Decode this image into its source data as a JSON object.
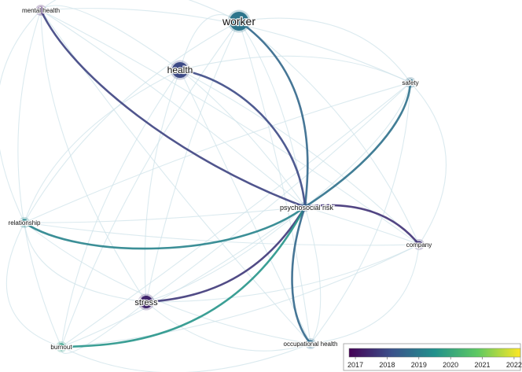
{
  "network": {
    "nodes": [
      {
        "id": "worker",
        "label": "worker",
        "year": 2018.9,
        "weight": 5
      },
      {
        "id": "mental_health",
        "label": "mental health",
        "year": 2017.2,
        "weight": 1
      },
      {
        "id": "health",
        "label": "health",
        "year": 2018.0,
        "weight": 4
      },
      {
        "id": "safety",
        "label": "safety",
        "year": 2018.8,
        "weight": 1
      },
      {
        "id": "psychosocial_risk",
        "label": "psychosocial risk",
        "year": 2018.4,
        "weight": 6
      },
      {
        "id": "relationship",
        "label": "relationship",
        "year": 2019.3,
        "weight": 1
      },
      {
        "id": "company",
        "label": "company",
        "year": 2017.6,
        "weight": 1
      },
      {
        "id": "stress",
        "label": "stress",
        "year": 2017.4,
        "weight": 3
      },
      {
        "id": "burnout",
        "label": "burnout",
        "year": 2019.8,
        "weight": 1
      },
      {
        "id": "occupational_health",
        "label": "occupational health",
        "year": 2018.7,
        "weight": 1
      }
    ],
    "strong_links": [
      {
        "source": "psychosocial_risk",
        "target": "worker",
        "year": 2018.6
      },
      {
        "source": "psychosocial_risk",
        "target": "mental_health",
        "year": 2017.9
      },
      {
        "source": "psychosocial_risk",
        "target": "health",
        "year": 2018.0
      },
      {
        "source": "psychosocial_risk",
        "target": "safety",
        "year": 2018.8
      },
      {
        "source": "psychosocial_risk",
        "target": "relationship",
        "year": 2019.2
      },
      {
        "source": "psychosocial_risk",
        "target": "company",
        "year": 2017.6
      },
      {
        "source": "psychosocial_risk",
        "target": "stress",
        "year": 2017.7
      },
      {
        "source": "psychosocial_risk",
        "target": "burnout",
        "year": 2019.6
      },
      {
        "source": "psychosocial_risk",
        "target": "occupational_health",
        "year": 2018.6
      }
    ]
  },
  "legend": {
    "ticks": [
      "2017",
      "2018",
      "2019",
      "2020",
      "2021",
      "2022"
    ],
    "range": [
      2016.8,
      2022.2
    ],
    "colors": [
      "#440154",
      "#3b528b",
      "#21918c",
      "#5ec962",
      "#fde725"
    ]
  }
}
